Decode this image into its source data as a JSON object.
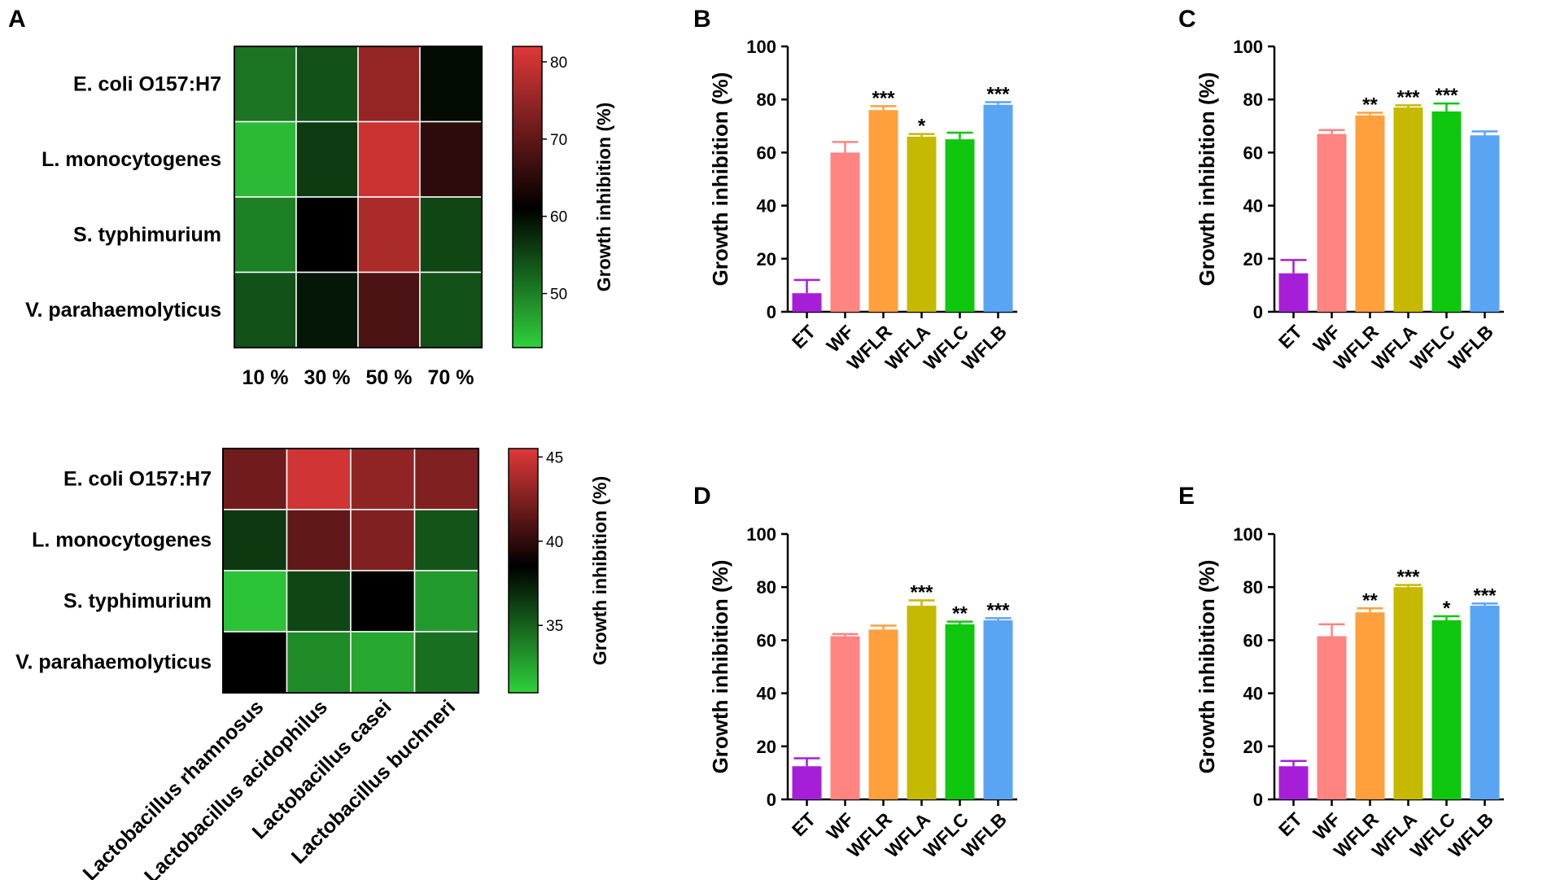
{
  "colors": {
    "bars": [
      "#a61fd8",
      "#ff8482",
      "#ffa03c",
      "#c6b901",
      "#0ec70e",
      "#5aa4f4"
    ],
    "hm_low": "#2fd13c",
    "hm_mid": "#000000",
    "hm_high": "#e03838"
  },
  "chart_data": [
    {
      "panel": "A",
      "type": "heatmap",
      "rows": [
        "E. coli O157:H7",
        "L. monocytogenes",
        "S. typhimurium",
        "V. parahaemolyticus"
      ],
      "columns": [
        "10 %",
        "30 %",
        "50 %",
        "70 %"
      ],
      "values": [
        [
          51,
          54,
          75,
          60
        ],
        [
          45,
          56,
          80,
          65
        ],
        [
          50,
          61,
          77,
          55
        ],
        [
          54,
          59,
          68,
          54
        ]
      ],
      "colorbar": {
        "min": 43,
        "mid": 61,
        "max": 82,
        "ticks": [
          80,
          70,
          60,
          50
        ],
        "label": "Growth inhibition   (%)"
      }
    },
    {
      "panel": "",
      "type": "heatmap",
      "rows": [
        "E. coli O157:H7",
        "L. monocytogenes",
        "S. typhimurium",
        "V. parahaemolyticus"
      ],
      "columns": [
        "Lactobacillus rhamnosus",
        "Lactobacillus acidophilus",
        "Lactobacillus casei",
        "Lactobacillus buchneri"
      ],
      "values": [
        [
          42,
          45,
          43,
          42.5
        ],
        [
          36.5,
          41.5,
          42.5,
          35.5
        ],
        [
          31.5,
          36,
          38.5,
          33
        ],
        [
          38.5,
          33.5,
          32.5,
          34.5
        ]
      ],
      "colorbar": {
        "min": 31,
        "mid": 38.5,
        "max": 45.5,
        "ticks": [
          45,
          40,
          35
        ],
        "label": "Growth inhibition   (%)"
      }
    },
    {
      "panel": "B",
      "type": "bar",
      "categories": [
        "ET",
        "WF",
        "WFLR",
        "WFLA",
        "WFLC",
        "WFLB"
      ],
      "values": [
        7,
        60,
        76,
        66,
        65,
        78
      ],
      "errors": [
        5,
        4,
        1.5,
        1,
        2.5,
        1
      ],
      "significance": [
        "",
        "",
        "***",
        "*",
        "",
        "***"
      ],
      "ylabel": "Growth inhibition (%)",
      "ylim": [
        0,
        100
      ],
      "yticks": [
        0,
        20,
        40,
        60,
        80,
        100
      ]
    },
    {
      "panel": "C",
      "type": "bar",
      "categories": [
        "ET",
        "WF",
        "WFLR",
        "WFLA",
        "WFLC",
        "WFLB"
      ],
      "values": [
        14.5,
        67,
        74,
        77,
        75.5,
        66.5
      ],
      "errors": [
        5,
        1.5,
        1,
        0.8,
        3,
        1.5
      ],
      "significance": [
        "",
        "",
        "**",
        "***",
        "***",
        ""
      ],
      "ylabel": "Growth inhibition (%)",
      "ylim": [
        0,
        100
      ],
      "yticks": [
        0,
        20,
        40,
        60,
        80,
        100
      ]
    },
    {
      "panel": "D",
      "type": "bar",
      "categories": [
        "ET",
        "WF",
        "WFLR",
        "WFLA",
        "WFLC",
        "WFLB"
      ],
      "values": [
        12.5,
        61.5,
        64,
        73,
        66,
        67.5
      ],
      "errors": [
        3,
        0.8,
        1.5,
        2,
        1,
        0.8
      ],
      "significance": [
        "",
        "",
        "",
        "***",
        "**",
        "***"
      ],
      "ylabel": "Growth inhibition (%)",
      "ylim": [
        0,
        100
      ],
      "yticks": [
        0,
        20,
        40,
        60,
        80,
        100
      ]
    },
    {
      "panel": "E",
      "type": "bar",
      "categories": [
        "ET",
        "WF",
        "WFLR",
        "WFLA",
        "WFLC",
        "WFLB"
      ],
      "values": [
        12.5,
        61.5,
        70.5,
        80,
        67.5,
        73
      ],
      "errors": [
        2,
        4.5,
        1.5,
        0.8,
        1.5,
        0.8
      ],
      "significance": [
        "",
        "",
        "**",
        "***",
        "*",
        "***"
      ],
      "ylabel": "Growth inhibition (%)",
      "ylim": [
        0,
        100
      ],
      "yticks": [
        0,
        20,
        40,
        60,
        80,
        100
      ]
    }
  ]
}
